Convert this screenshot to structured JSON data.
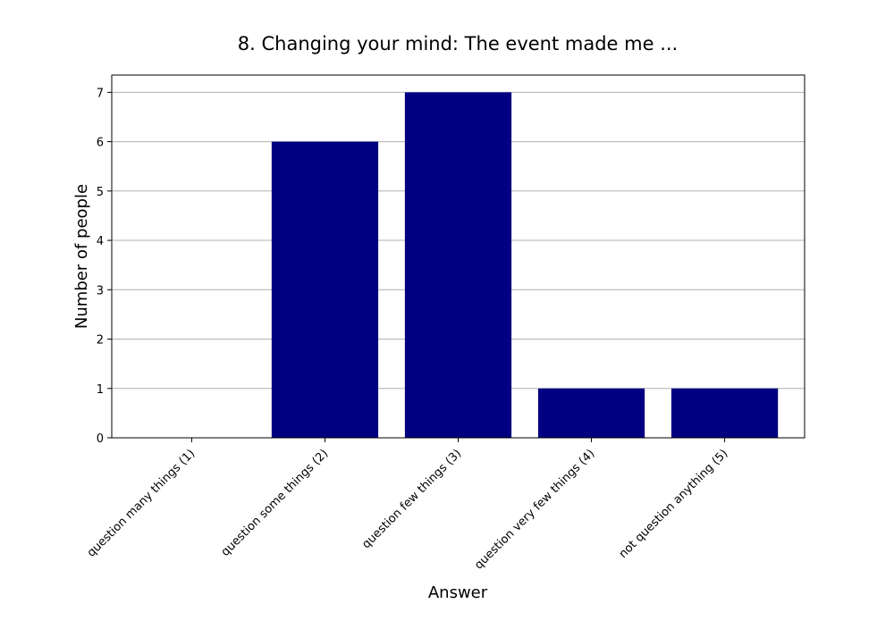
{
  "chart_data": {
    "type": "bar",
    "title": "8. Changing your mind: The event made me ...",
    "xlabel": "Answer",
    "ylabel": "Number of people",
    "categories": [
      "question many things (1)",
      "question some things (2)",
      "question few things (3)",
      "question very few things (4)",
      "not question anything (5)"
    ],
    "values": [
      0,
      6,
      7,
      1,
      1
    ],
    "ylim": [
      0,
      7.35
    ],
    "yticks": [
      "0",
      "1",
      "2",
      "3",
      "4",
      "5",
      "6",
      "7"
    ],
    "grid": "y",
    "bar_color": "#000080",
    "grid_color": "#b0b0b0"
  }
}
